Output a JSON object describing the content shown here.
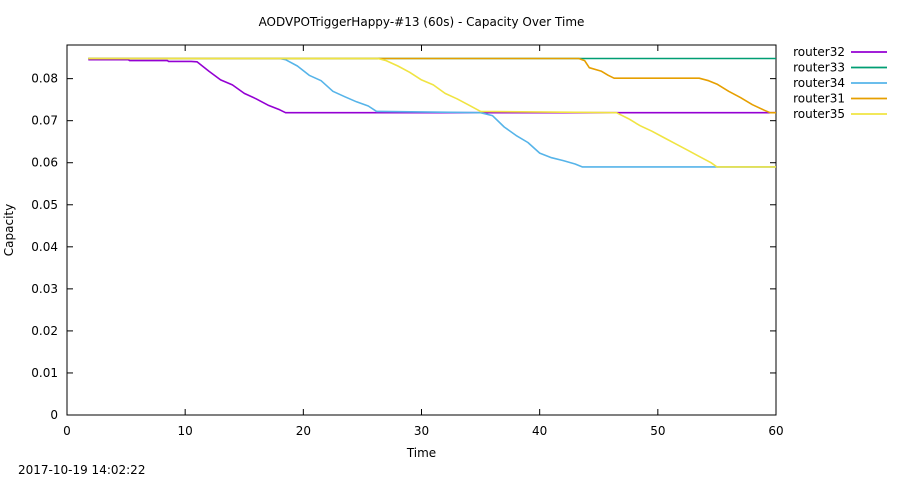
{
  "chart_data": {
    "type": "line",
    "title": "AODVPOTriggerHappy-#13 (60s) - Capacity Over Time",
    "xlabel": "Time",
    "ylabel": "Capacity",
    "xlim": [
      0,
      60
    ],
    "ylim": [
      0,
      0.088
    ],
    "x_ticks": [
      0,
      10,
      20,
      30,
      40,
      50,
      60
    ],
    "y_ticks": [
      0,
      0.01,
      0.02,
      0.03,
      0.04,
      0.05,
      0.06,
      0.07,
      0.08
    ],
    "y_tick_labels": [
      "0",
      "0.01",
      "0.02",
      "0.03",
      "0.04",
      "0.05",
      "0.06",
      "0.07",
      "0.08"
    ],
    "grid": false,
    "legend_position": "right",
    "series": [
      {
        "name": "router32",
        "color": "#9400d3",
        "x": [
          1.8,
          5.2,
          5.3,
          8.5,
          8.6,
          10.5,
          11,
          12,
          13,
          14,
          15,
          16,
          17,
          18,
          18.5,
          26,
          46.5,
          60
        ],
        "y": [
          0.0845,
          0.0845,
          0.0843,
          0.0843,
          0.0841,
          0.0841,
          0.084,
          0.0818,
          0.0797,
          0.0785,
          0.0765,
          0.0752,
          0.0737,
          0.0726,
          0.0719,
          0.0719,
          0.0719,
          0.0719
        ]
      },
      {
        "name": "router33",
        "color": "#009e73",
        "x": [
          1.8,
          60
        ],
        "y": [
          0.0848,
          0.0848
        ]
      },
      {
        "name": "router34",
        "color": "#56b4e9",
        "x": [
          1.8,
          18,
          18.5,
          19.5,
          20.5,
          21.5,
          22.5,
          23.5,
          24.5,
          25.5,
          26.2,
          35,
          36,
          37,
          38,
          39,
          40,
          41,
          42,
          43,
          43.6,
          55,
          60
        ],
        "y": [
          0.0848,
          0.0848,
          0.0845,
          0.083,
          0.0808,
          0.0795,
          0.077,
          0.0757,
          0.0745,
          0.0735,
          0.0722,
          0.0719,
          0.0712,
          0.0685,
          0.0665,
          0.0648,
          0.0623,
          0.0612,
          0.0605,
          0.0597,
          0.059,
          0.059,
          0.059
        ]
      },
      {
        "name": "router31",
        "color": "#e69f00",
        "x": [
          1.8,
          43.3,
          43.8,
          44.2,
          45.2,
          45.8,
          46.3,
          53.5,
          54.3,
          55,
          56,
          57,
          58,
          59,
          59.5,
          60
        ],
        "y": [
          0.0848,
          0.0848,
          0.0843,
          0.0826,
          0.0818,
          0.0808,
          0.0801,
          0.0801,
          0.0795,
          0.0787,
          0.077,
          0.0755,
          0.0738,
          0.0725,
          0.0719,
          0.0719
        ]
      },
      {
        "name": "router35",
        "color": "#f0e442",
        "x": [
          1.8,
          26.3,
          27,
          28,
          29,
          30,
          31,
          32,
          33,
          34,
          35,
          46.5,
          47.5,
          48.5,
          49.5,
          50.5,
          51.5,
          52.5,
          53.5,
          54.5,
          55,
          60
        ],
        "y": [
          0.0848,
          0.0848,
          0.0843,
          0.083,
          0.0815,
          0.0797,
          0.0785,
          0.0765,
          0.0752,
          0.0737,
          0.0722,
          0.0719,
          0.0705,
          0.0688,
          0.0675,
          0.066,
          0.0645,
          0.063,
          0.0615,
          0.06,
          0.059,
          0.059
        ]
      }
    ]
  },
  "footer": {
    "timestamp": "2017-10-19 14:02:22"
  }
}
